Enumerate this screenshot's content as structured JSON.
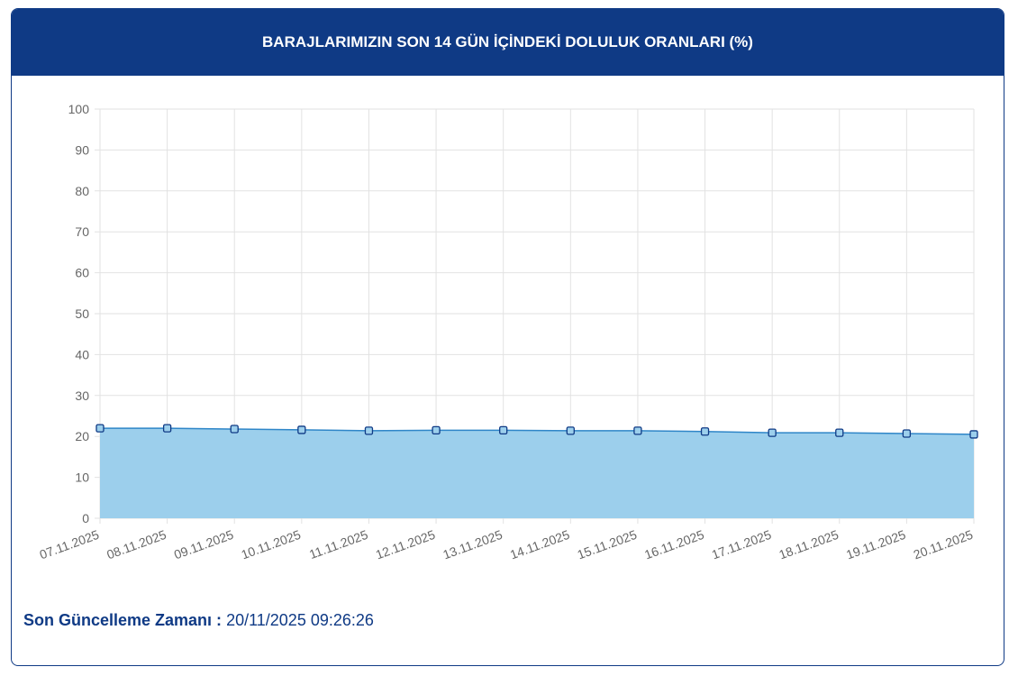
{
  "chart_data": {
    "type": "area",
    "title": "BARAJLARIMIZIN SON 14 GÜN İÇİNDEKİ DOLULUK ORANLARI (%)",
    "categories": [
      "07.11.2025",
      "08.11.2025",
      "09.11.2025",
      "10.11.2025",
      "11.11.2025",
      "12.11.2025",
      "13.11.2025",
      "14.11.2025",
      "15.11.2025",
      "16.11.2025",
      "17.11.2025",
      "18.11.2025",
      "19.11.2025",
      "20.11.2025"
    ],
    "series": [
      {
        "values": [
          22.0,
          22.0,
          21.8,
          21.6,
          21.4,
          21.5,
          21.5,
          21.4,
          21.4,
          21.2,
          20.9,
          20.9,
          20.7,
          20.5
        ],
        "color": "#2f86c8",
        "fill": "#9ccfec",
        "marker_color": "#0f3a85"
      }
    ],
    "ylim": [
      0,
      100
    ],
    "yticks": [
      0,
      10,
      20,
      30,
      40,
      50,
      60,
      70,
      80,
      90,
      100
    ],
    "grid": true
  },
  "footer": {
    "label": "Son Güncelleme Zamanı :",
    "value": "20/11/2025 09:26:26"
  }
}
